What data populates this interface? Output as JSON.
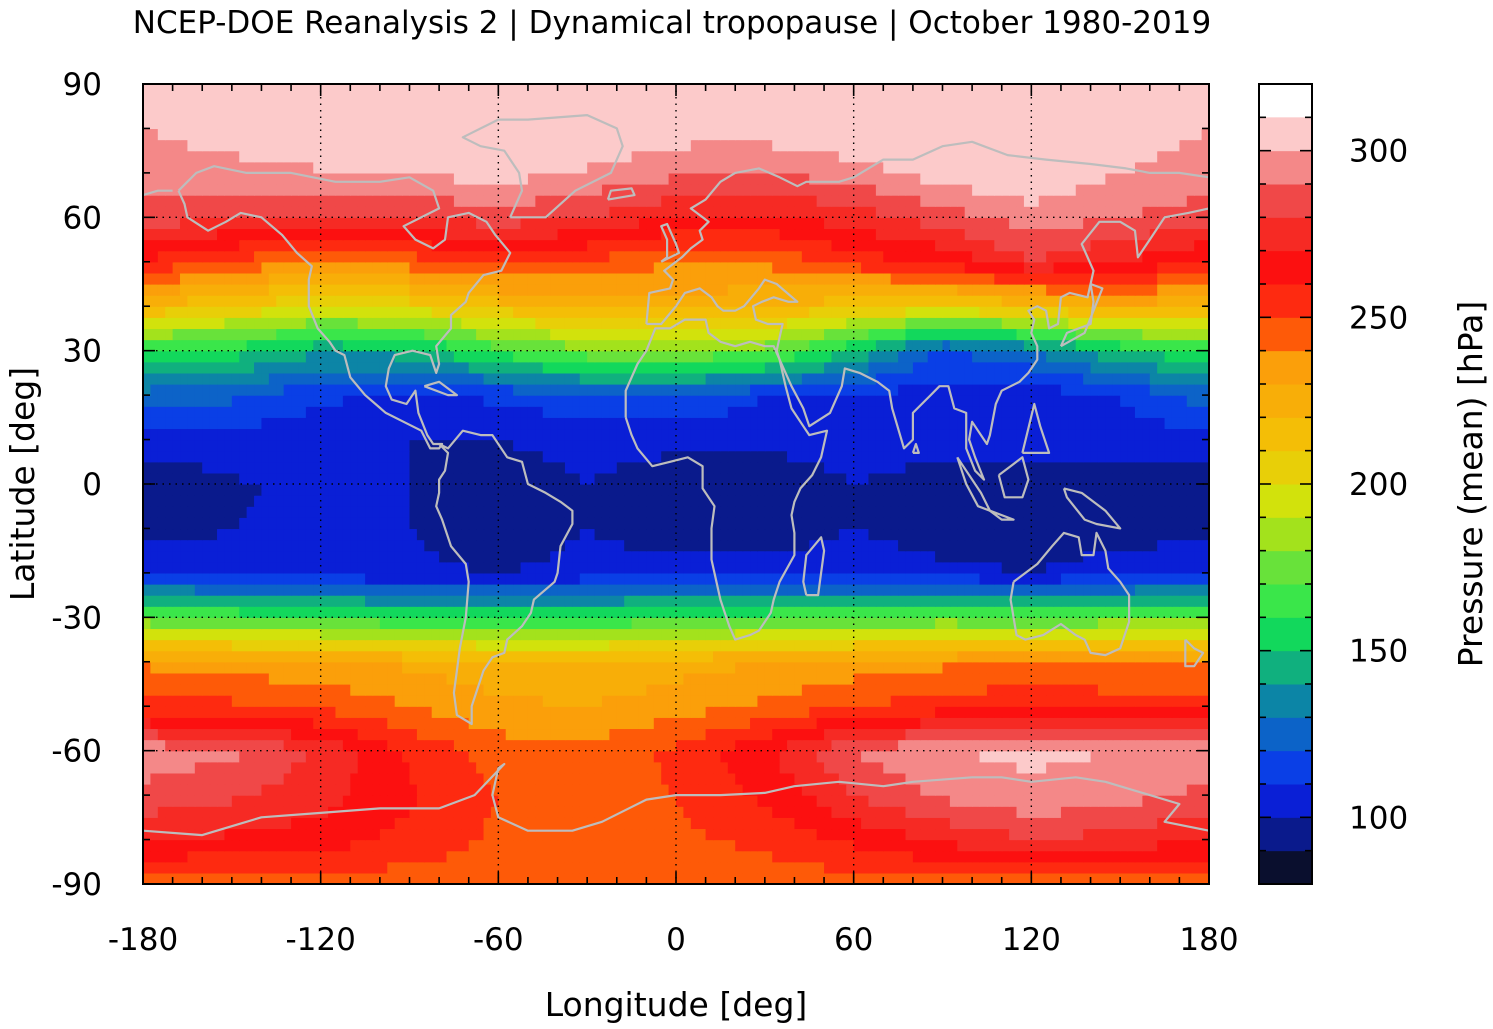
{
  "chart_data": {
    "type": "heatmap",
    "title": "NCEP-DOE Reanalysis 2 | Dynamical tropopause | October 1980-2019",
    "xlabel": "Longitude [deg]",
    "ylabel": "Latitude [deg]",
    "colorbar_label": "Pressure (mean) [hPa]",
    "xlim": [
      -180,
      180
    ],
    "ylim": [
      -90,
      90
    ],
    "x_ticks": [
      -180,
      -120,
      -60,
      0,
      60,
      120,
      180
    ],
    "y_ticks": [
      90,
      60,
      30,
      0,
      -30,
      -60,
      -90
    ],
    "x_tick_labels": [
      "-180",
      "-120",
      "-60",
      "0",
      "60",
      "120",
      "180"
    ],
    "y_tick_labels": [
      "90",
      "60",
      "30",
      "0",
      "-30",
      "-60",
      "-90"
    ],
    "colorbar_range": [
      80,
      320
    ],
    "colorbar_ticks": [
      100,
      150,
      200,
      250,
      300
    ],
    "colorbar_tick_labels": [
      "100",
      "150",
      "200",
      "250",
      "300"
    ],
    "colorbar_step": 10,
    "colorbar_colors": [
      "#0a0f2e",
      "#0a1a8c",
      "#0a1fd6",
      "#0a3fe6",
      "#0c63c8",
      "#0c85a6",
      "#10b07e",
      "#12d85c",
      "#3ae64a",
      "#68e23a",
      "#a3e21c",
      "#d2e20c",
      "#e8cf08",
      "#f4be06",
      "#f8ae08",
      "#fb9f0a",
      "#fe5a08",
      "#fe2a10",
      "#fc1010",
      "#f62a24",
      "#f04848",
      "#f48888",
      "#fccaca"
    ],
    "grid": true,
    "coastlines": true,
    "pressure_field_hPa": {
      "latitude_deg": [
        -90,
        -80,
        -70,
        -60,
        -50,
        -40,
        -30,
        -20,
        -10,
        0,
        10,
        20,
        30,
        40,
        50,
        60,
        70,
        80,
        90
      ],
      "longitude_deg": [
        -180,
        -150,
        -120,
        -90,
        -60,
        -30,
        0,
        30,
        60,
        90,
        120,
        150,
        180
      ],
      "values": [
        [
          245,
          245,
          245,
          245,
          245,
          245,
          245,
          245,
          245,
          245,
          245,
          245,
          245
        ],
        [
          270,
          268,
          265,
          256,
          248,
          247,
          248,
          252,
          262,
          272,
          280,
          276,
          270
        ],
        [
          287,
          282,
          274,
          262,
          250,
          247,
          250,
          262,
          280,
          292,
          298,
          294,
          287
        ],
        [
          296,
          292,
          278,
          258,
          245,
          243,
          252,
          268,
          290,
          300,
          302,
          300,
          296
        ],
        [
          255,
          252,
          248,
          240,
          232,
          230,
          235,
          242,
          250,
          255,
          258,
          256,
          255
        ],
        [
          238,
          235,
          232,
          228,
          224,
          222,
          226,
          230,
          234,
          238,
          240,
          239,
          238
        ],
        [
          172,
          168,
          165,
          160,
          158,
          160,
          165,
          168,
          170,
          172,
          170,
          172,
          172
        ],
        [
          108,
          105,
          103,
          102,
          100,
          103,
          104,
          103,
          104,
          102,
          100,
          104,
          108
        ],
        [
          96,
          100,
          102,
          100,
          94,
          100,
          95,
          96,
          100,
          96,
          95,
          97,
          96
        ],
        [
          93,
          99,
          102,
          100,
          93,
          100,
          92,
          94,
          100,
          96,
          92,
          94,
          93
        ],
        [
          105,
          105,
          104,
          100,
          100,
          104,
          104,
          102,
          104,
          104,
          105,
          106,
          105
        ],
        [
          126,
          122,
          112,
          108,
          112,
          118,
          120,
          110,
          108,
          105,
          104,
          110,
          126
        ],
        [
          160,
          155,
          142,
          145,
          165,
          178,
          180,
          175,
          150,
          118,
          130,
          150,
          160
        ],
        [
          220,
          210,
          200,
          205,
          215,
          222,
          225,
          222,
          212,
          208,
          215,
          228,
          220
        ],
        [
          258,
          248,
          238,
          245,
          255,
          248,
          240,
          242,
          255,
          262,
          280,
          270,
          258
        ],
        [
          285,
          282,
          278,
          280,
          285,
          280,
          270,
          268,
          275,
          285,
          295,
          290,
          285
        ],
        [
          295,
          296,
          298,
          300,
          305,
          298,
          292,
          290,
          295,
          305,
          310,
          300,
          295
        ],
        [
          300,
          305,
          315,
          318,
          320,
          312,
          305,
          305,
          310,
          318,
          312,
          305,
          300
        ],
        [
          305,
          308,
          315,
          318,
          318,
          315,
          310,
          310,
          315,
          315,
          312,
          308,
          305
        ]
      ]
    }
  }
}
